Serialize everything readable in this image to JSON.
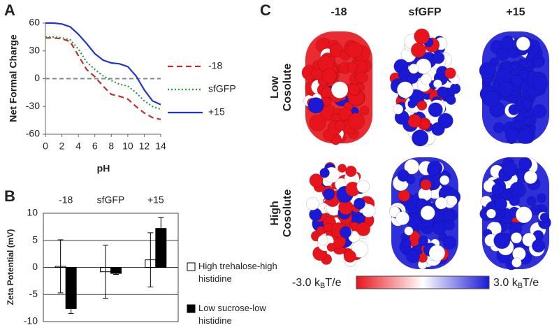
{
  "chart_data": [
    {
      "type": "line",
      "panel_label": "A",
      "x_label": "pH",
      "y_label": "Net Formal Charge",
      "x": [
        0,
        1,
        2,
        3,
        4,
        5,
        6,
        7,
        8,
        9,
        10,
        11,
        12,
        13,
        14
      ],
      "xlim": [
        0,
        14
      ],
      "xticks": [
        0,
        2,
        4,
        6,
        8,
        10,
        12,
        14
      ],
      "ylim": [
        -60,
        60
      ],
      "yticks": [
        -60,
        -30,
        0,
        30,
        60
      ],
      "reference_line": 0,
      "reference_color": "#888888",
      "series": [
        {
          "name": "-18",
          "color": "#c0302a",
          "style": "dashed",
          "values": [
            44,
            44,
            43,
            40,
            25,
            10,
            2,
            -8,
            -17,
            -19,
            -22,
            -30,
            -37,
            -42,
            -44
          ]
        },
        {
          "name": "sfGFP",
          "color": "#2a9a4a",
          "style": "dotted",
          "values": [
            45,
            45,
            44,
            42,
            32,
            18,
            10,
            3,
            -2,
            -6,
            -8,
            -15,
            -24,
            -30,
            -33
          ]
        },
        {
          "name": "+15",
          "color": "#2233cc",
          "style": "solid",
          "values": [
            60,
            60,
            59,
            56,
            48,
            38,
            27,
            20,
            17,
            16,
            13,
            3,
            -12,
            -24,
            -28
          ]
        }
      ]
    },
    {
      "type": "bar",
      "panel_label": "B",
      "y_label": "Zeta Potential (mV)",
      "categories": [
        "-18",
        "sfGFP",
        "+15"
      ],
      "ylim": [
        -10,
        10
      ],
      "yticks": [
        -10,
        -5,
        0,
        5,
        10
      ],
      "grid": true,
      "series": [
        {
          "name": "High trehalose-high histidine",
          "color": "#ffffff",
          "values": [
            0.2,
            -0.8,
            1.4
          ],
          "errors": [
            4.9,
            4.9,
            5.0
          ]
        },
        {
          "name": "Low sucrose-low histidine",
          "color": "#000000",
          "values": [
            -7.6,
            -1.1,
            7.2
          ],
          "errors": [
            0.9,
            0.2,
            2.0
          ]
        }
      ]
    }
  ],
  "panel_c": {
    "panel_label": "C",
    "columns": [
      "-18",
      "sfGFP",
      "+15"
    ],
    "rows": [
      [
        "Low",
        "Cosolute"
      ],
      [
        "High",
        "Cosolute"
      ]
    ],
    "colorbar": {
      "low_label": "-3.0 k",
      "high_label": "3.0 k",
      "subscript": "B",
      "unit": "T/e",
      "low_color": "#e8141c",
      "mid_color": "#ffffff",
      "high_color": "#1a1ad6"
    }
  }
}
